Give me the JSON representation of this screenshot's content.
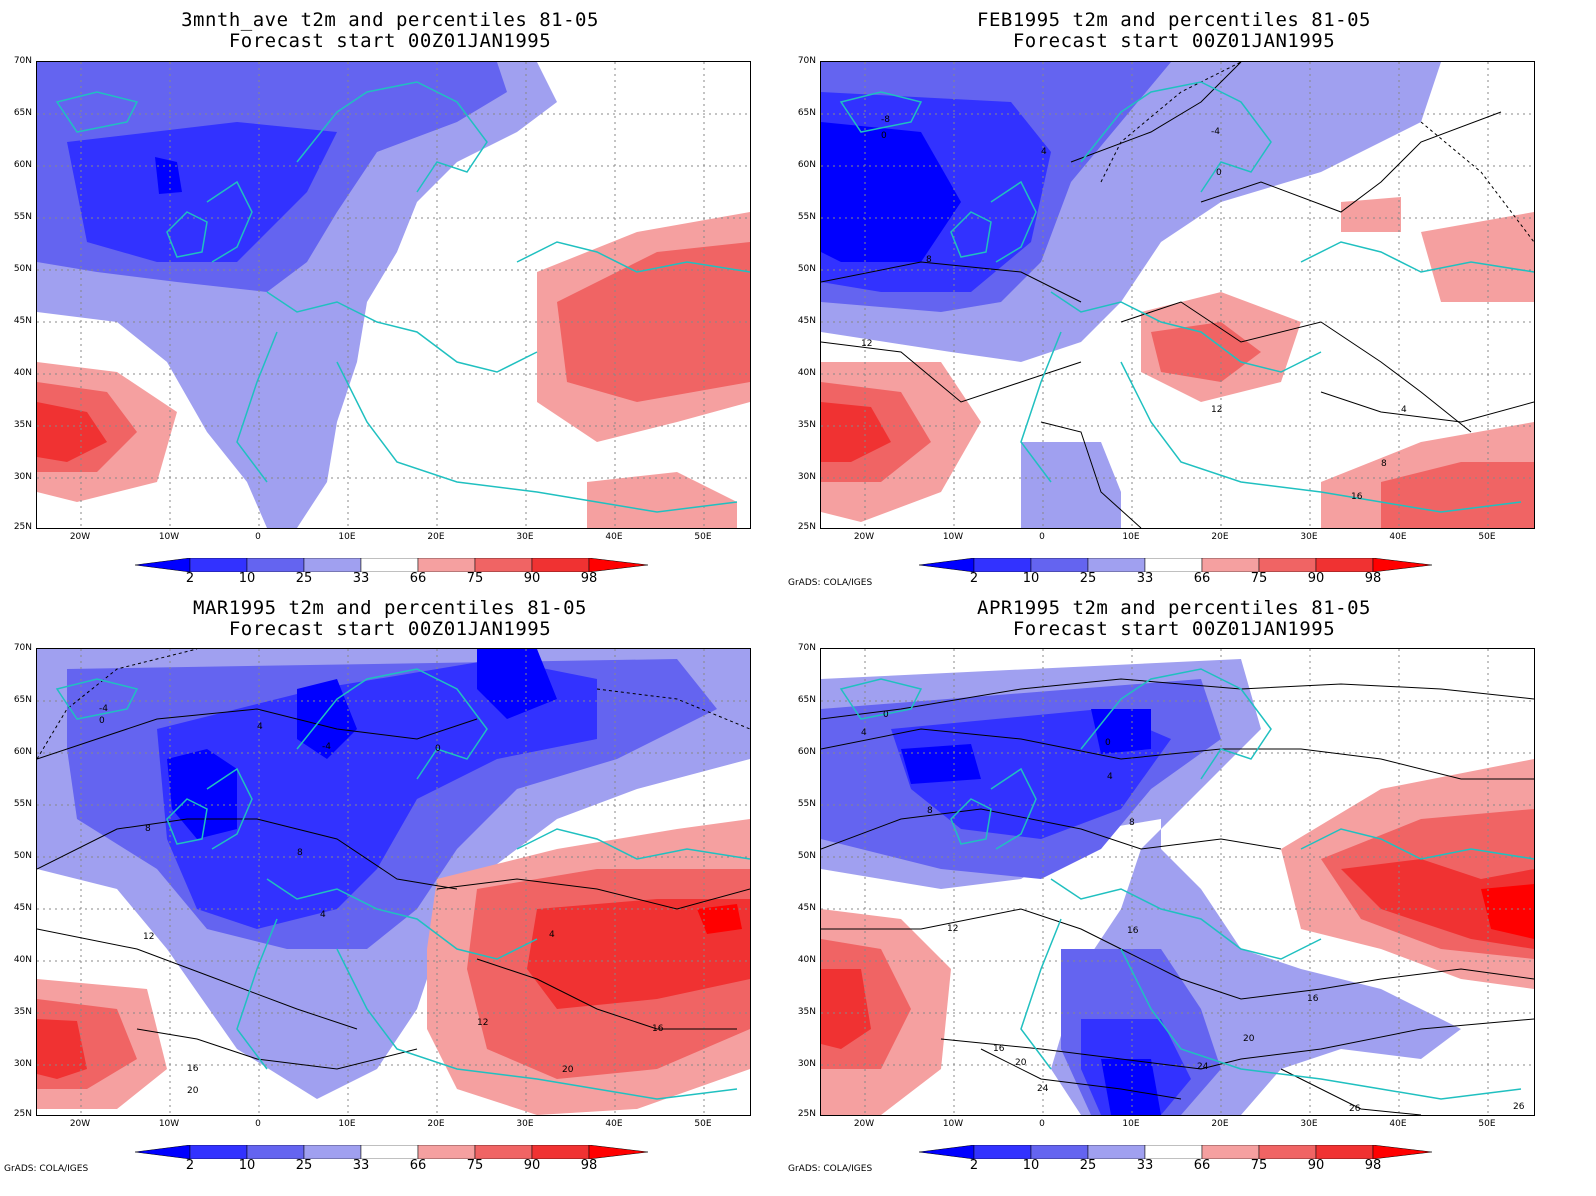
{
  "credit": "GrADS: COLA/IGES",
  "axes": {
    "lat_labels": [
      "70N",
      "65N",
      "60N",
      "55N",
      "50N",
      "45N",
      "40N",
      "35N",
      "30N",
      "25N"
    ],
    "lon_labels": [
      "20W",
      "10W",
      "0",
      "10E",
      "20E",
      "30E",
      "40E",
      "50E"
    ]
  },
  "colorbar": {
    "labels": [
      "2",
      "10",
      "25",
      "33",
      "66",
      "75",
      "90",
      "98"
    ],
    "colors": [
      "#0000ff",
      "#3232ff",
      "#6464f0",
      "#a0a0f0",
      "#ffffff",
      "#f5a0a0",
      "#f06464",
      "#f03232",
      "#ff0000"
    ]
  },
  "panels": [
    {
      "title1": "3mnth_ave t2m and percentiles 81-05",
      "title2": "Forecast start 00Z01JAN1995",
      "has_credit": false,
      "contours": []
    },
    {
      "title1": "FEB1995 t2m and percentiles 81-05",
      "title2": "Forecast start 00Z01JAN1995",
      "has_credit": true,
      "contours": [
        "-8",
        "-4",
        "0",
        "4",
        "8",
        "12",
        "16",
        "-8",
        "0",
        "4",
        "8",
        "12",
        "16",
        "-4",
        "0",
        "4"
      ]
    },
    {
      "title1": "MAR1995 t2m and percentiles 81-05",
      "title2": "Forecast start 00Z01JAN1995",
      "has_credit": true,
      "contours": [
        "-4",
        "0",
        "4",
        "8",
        "12",
        "16",
        "20",
        "-4",
        "0",
        "4",
        "8",
        "12",
        "16",
        "20",
        "8",
        "4"
      ]
    },
    {
      "title1": "APR1995 t2m and percentiles 81-05",
      "title2": "Forecast start 00Z01JAN1995",
      "has_credit": true,
      "contours": [
        "0",
        "4",
        "8",
        "12",
        "16",
        "20",
        "24",
        "0",
        "4",
        "8",
        "12",
        "16",
        "20",
        "24",
        "26",
        "8"
      ]
    }
  ]
}
